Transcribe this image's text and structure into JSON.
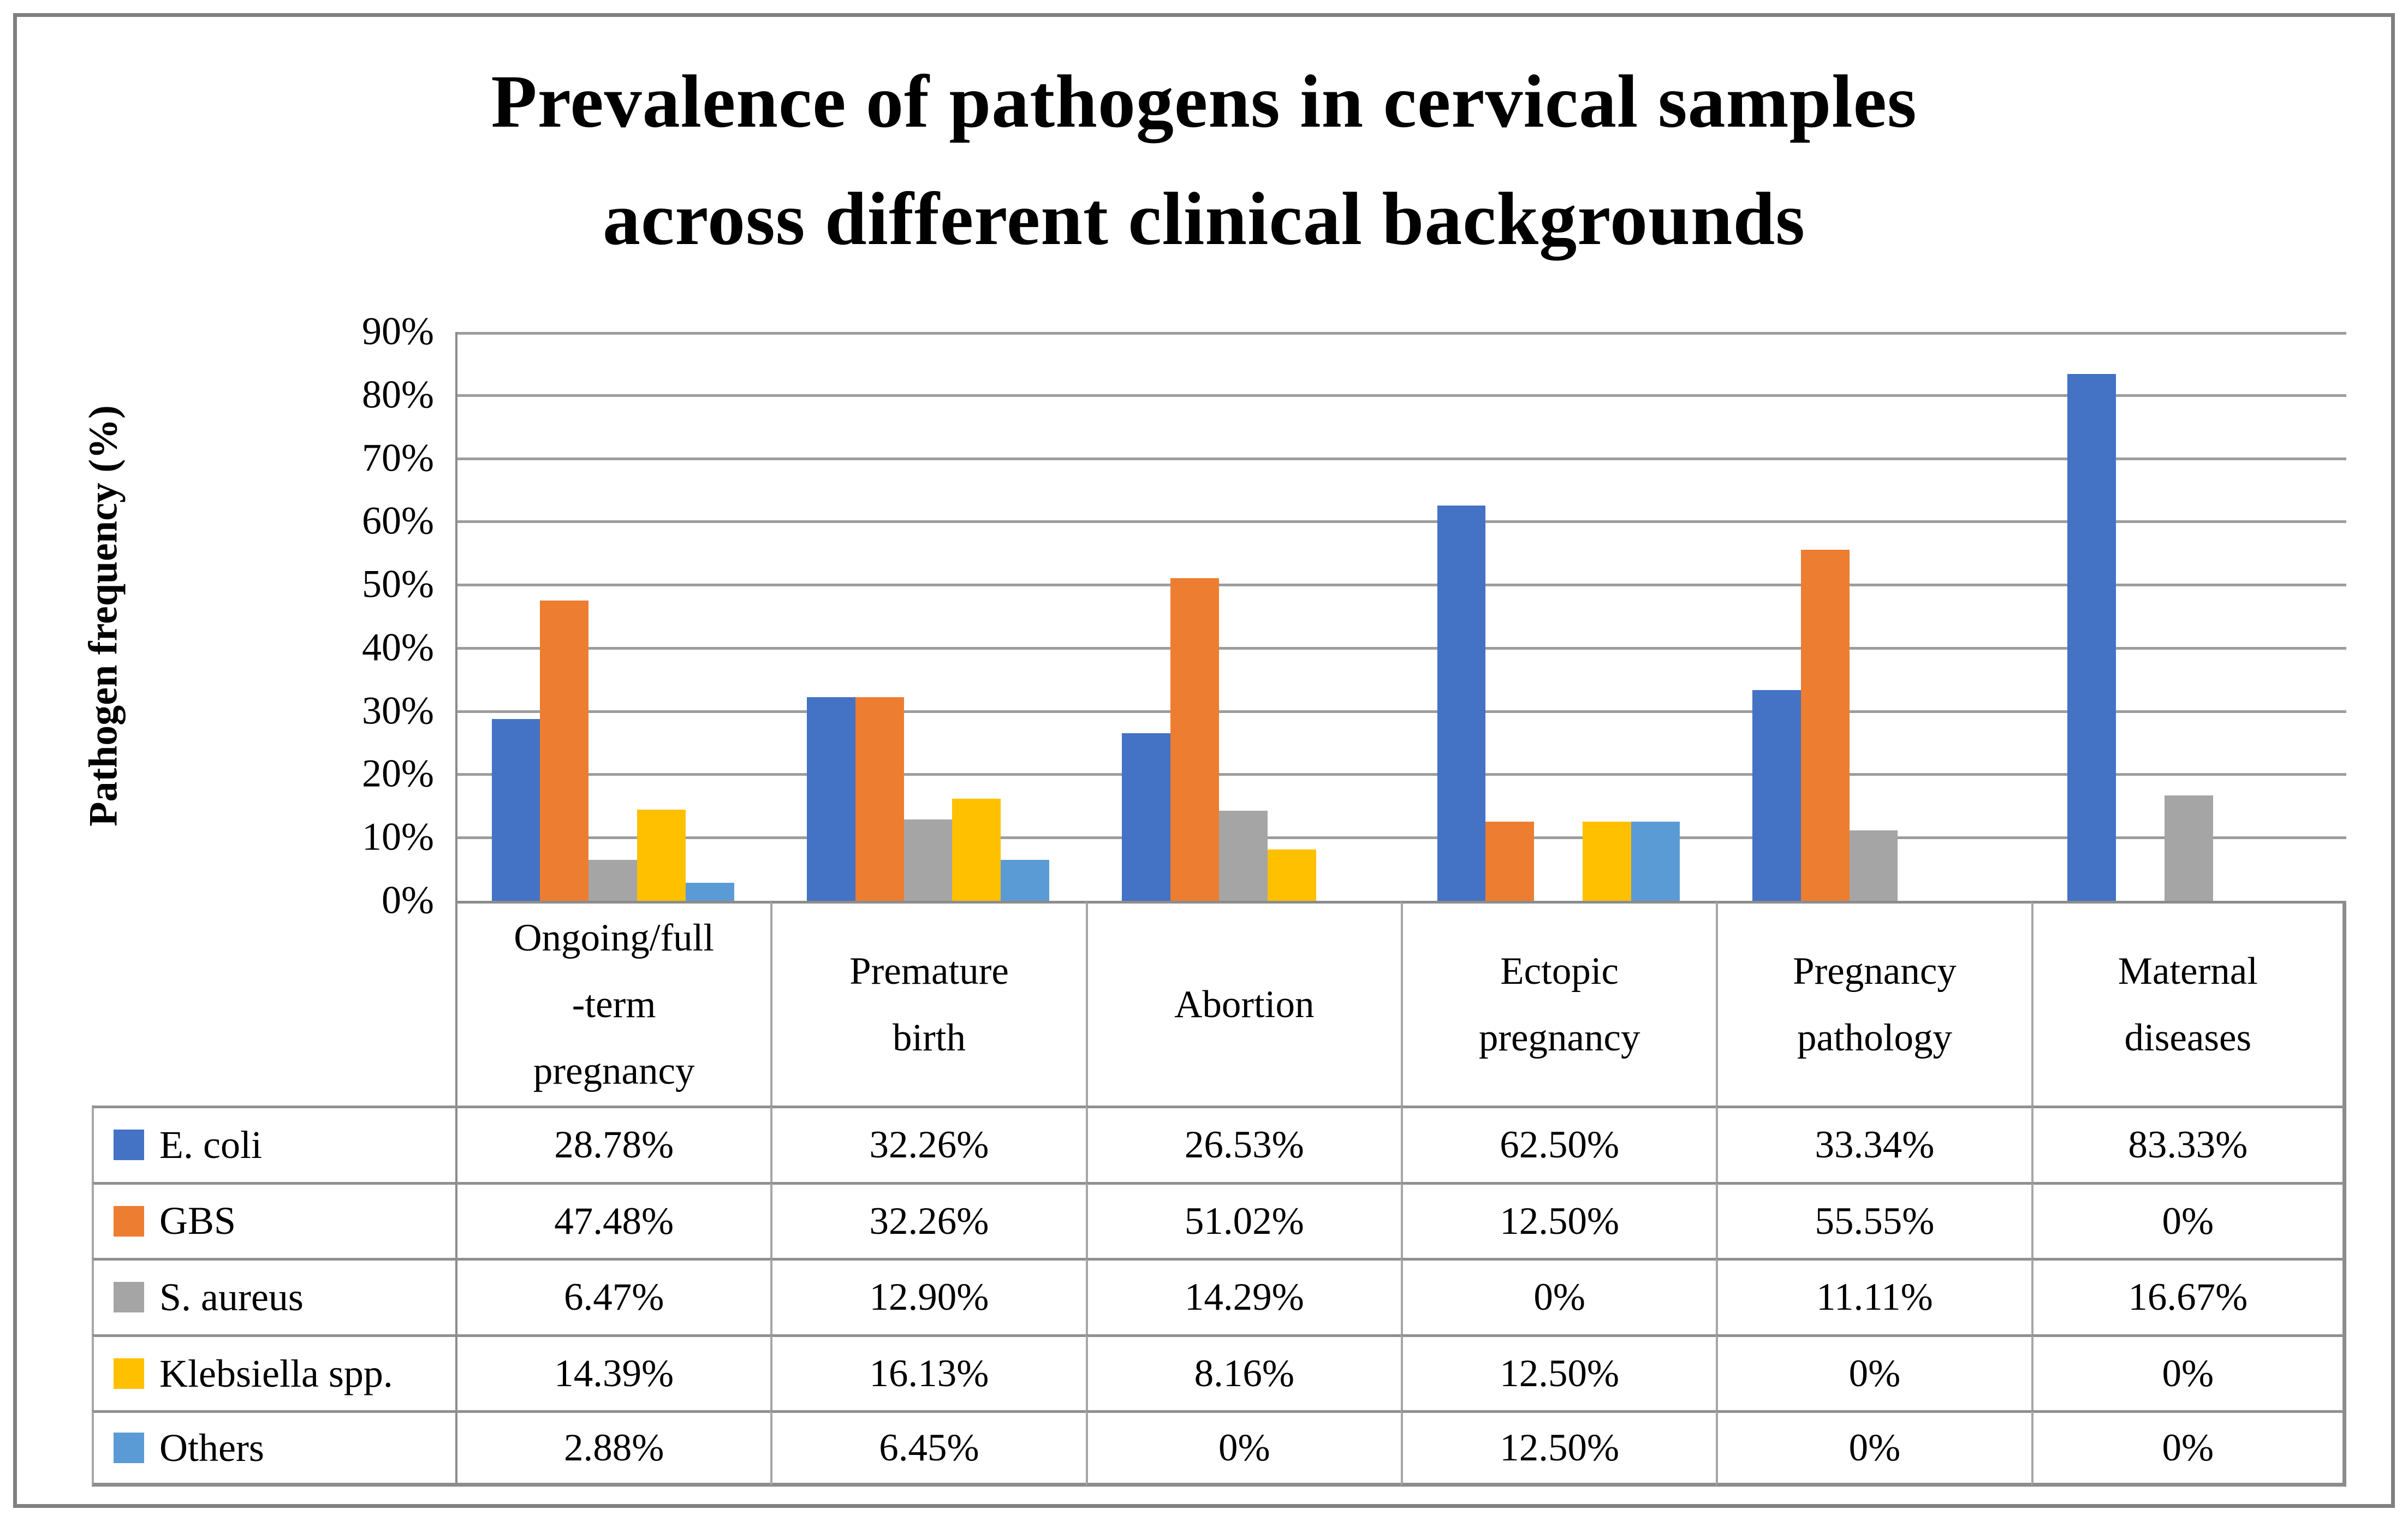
{
  "figure": {
    "title_line1": "Prevalence of pathogens in cervical samples",
    "title_line2": "across different clinical backgrounds"
  },
  "chart_data": {
    "type": "bar",
    "title": "Prevalence of pathogens in cervical samples across different clinical backgrounds",
    "xlabel": "",
    "ylabel": "Pathogen frequency (%)",
    "ylim": [
      0,
      90
    ],
    "ytick_step": 10,
    "ytick_labels": [
      "0%",
      "10%",
      "20%",
      "30%",
      "40%",
      "50%",
      "60%",
      "70%",
      "80%",
      "90%"
    ],
    "grid": true,
    "legend_position": "data-table-left-column",
    "categories": [
      "Ongoing/full\n-term\npregnancy",
      "Premature\nbirth",
      "Abortion",
      "Ectopic\npregnancy",
      "Pregnancy\npathology",
      "Maternal\ndiseases"
    ],
    "series": [
      {
        "name": "E. coli",
        "color": "#4472C4",
        "values": [
          28.78,
          32.26,
          26.53,
          62.5,
          33.34,
          83.33
        ],
        "display": [
          "28.78%",
          "32.26%",
          "26.53%",
          "62.50%",
          "33.34%",
          "83.33%"
        ]
      },
      {
        "name": "GBS",
        "color": "#ED7D31",
        "values": [
          47.48,
          32.26,
          51.02,
          12.5,
          55.55,
          0
        ],
        "display": [
          "47.48%",
          "32.26%",
          "51.02%",
          "12.50%",
          "55.55%",
          "0%"
        ]
      },
      {
        "name": "S. aureus",
        "color": "#A5A5A5",
        "values": [
          6.47,
          12.9,
          14.29,
          0,
          11.11,
          16.67
        ],
        "display": [
          "6.47%",
          "12.90%",
          "14.29%",
          "0%",
          "11.11%",
          "16.67%"
        ]
      },
      {
        "name": "Klebsiella spp.",
        "color": "#FFC000",
        "values": [
          14.39,
          16.13,
          8.16,
          12.5,
          0,
          0
        ],
        "display": [
          "14.39%",
          "16.13%",
          "8.16%",
          "12.50%",
          "0%",
          "0%"
        ]
      },
      {
        "name": "Others",
        "color": "#5B9BD5",
        "values": [
          2.88,
          6.45,
          0,
          12.5,
          0,
          0
        ],
        "display": [
          "2.88%",
          "6.45%",
          "0%",
          "12.50%",
          "0%",
          "0%"
        ]
      }
    ],
    "styles": {
      "grid_color": "#9d9d9d",
      "axis_color": "#8c8c8c",
      "row_line_color": "#909090",
      "column_line_color": "#a6a6a6",
      "frame_color": "#808080"
    }
  }
}
